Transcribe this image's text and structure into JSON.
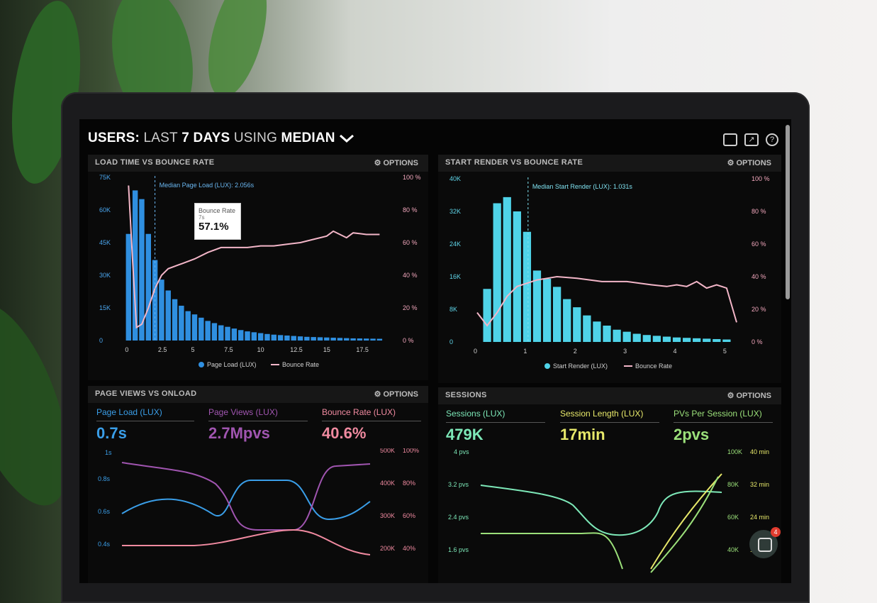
{
  "header": {
    "prefix": "USERS:",
    "last": "LAST",
    "days": "7 DAYS",
    "using": "USING",
    "metric": "MEDIAN",
    "chevron_icon": "chevron-down-icon",
    "icons": [
      "monitor-icon",
      "share-icon",
      "help-icon"
    ]
  },
  "options_label": "OPTIONS",
  "panels": {
    "load": {
      "title": "LOAD TIME VS BOUNCE RATE",
      "median_label": "Median Page Load (LUX): 2.056s",
      "tooltip": {
        "title": "Bounce Rate",
        "sub": "7s",
        "value": "57.1%"
      },
      "legend": [
        "Page Load (LUX)",
        "Bounce Rate"
      ]
    },
    "render": {
      "title": "START RENDER VS BOUNCE RATE",
      "median_label": "Median Start Render (LUX): 1.031s",
      "legend": [
        "Start Render (LUX)",
        "Bounce Rate"
      ]
    },
    "pageviews": {
      "title": "PAGE VIEWS VS ONLOAD",
      "metrics": [
        {
          "label": "Page Load (LUX)",
          "value": "0.7s",
          "color": "#3a9ee8"
        },
        {
          "label": "Page Views (LUX)",
          "value": "2.7Mpvs",
          "color": "#a055b0"
        },
        {
          "label": "Bounce Rate (LUX)",
          "value": "40.6%",
          "color": "#f08aa0"
        }
      ]
    },
    "sessions": {
      "title": "SESSIONS",
      "metrics": [
        {
          "label": "Sessions (LUX)",
          "value": "479K",
          "color": "#7de8b8"
        },
        {
          "label": "Session Length (LUX)",
          "value": "17min",
          "color": "#e7e86a"
        },
        {
          "label": "PVs Per Session (LUX)",
          "value": "2pvs",
          "color": "#9be07a"
        }
      ]
    }
  },
  "chat_badge": "4",
  "chart_data": [
    {
      "type": "bar",
      "title": "LOAD TIME VS BOUNCE RATE",
      "x_ticks": [
        "0",
        "2.5",
        "5",
        "7.5",
        "10",
        "12.5",
        "15",
        "17.5"
      ],
      "y_ticks": [
        "0",
        "15K",
        "30K",
        "45K",
        "60K",
        "75K"
      ],
      "y2_ticks": [
        "0 %",
        "20 %",
        "40 %",
        "60 %",
        "80 %",
        "100 %"
      ],
      "ylim": [
        0,
        75000
      ],
      "xlim": [
        -0.5,
        20
      ],
      "series": [
        {
          "name": "Page Load (LUX)",
          "type": "bar",
          "color": "#2f8fe0",
          "x": [
            0,
            0.5,
            1,
            1.5,
            2,
            2.5,
            3,
            3.5,
            4,
            4.5,
            5,
            5.5,
            6,
            6.5,
            7,
            7.5,
            8,
            8.5,
            9,
            9.5,
            10,
            10.5,
            11,
            11.5,
            12,
            12.5,
            13,
            13.5,
            14,
            14.5,
            15,
            15.5,
            16,
            16.5,
            17,
            17.5,
            18,
            18.5,
            19
          ],
          "values": [
            49000,
            69000,
            65000,
            49000,
            37000,
            28000,
            23000,
            19000,
            16000,
            13500,
            12000,
            10500,
            9000,
            8000,
            7000,
            6300,
            5500,
            4800,
            4200,
            3800,
            3400,
            3000,
            2700,
            2500,
            2300,
            2100,
            1900,
            1700,
            1600,
            1500,
            1400,
            1300,
            1200,
            1100,
            1000,
            950,
            900,
            850,
            800
          ]
        },
        {
          "name": "Bounce Rate",
          "type": "line",
          "axis": "y2",
          "color": "#f3b6c8",
          "x": [
            0,
            0.3,
            0.6,
            1,
            1.5,
            2,
            2.5,
            3,
            4,
            5,
            6,
            7,
            8,
            9,
            10,
            11,
            12,
            13,
            14,
            15,
            15.5,
            16,
            16.5,
            17,
            18,
            19
          ],
          "values": [
            95,
            50,
            8,
            10,
            20,
            32,
            40,
            44,
            47,
            50,
            54,
            57,
            57,
            57,
            58,
            58,
            59,
            60,
            62,
            64,
            67,
            65,
            63,
            66,
            65,
            65
          ]
        }
      ]
    },
    {
      "type": "bar",
      "title": "START RENDER VS BOUNCE RATE",
      "x_ticks": [
        "0",
        "1",
        "2",
        "3",
        "4",
        "5"
      ],
      "y_ticks": [
        "0",
        "8K",
        "16K",
        "24K",
        "32K",
        "40K"
      ],
      "y2_ticks": [
        "0 %",
        "20 %",
        "40 %",
        "60 %",
        "80 %",
        "100 %"
      ],
      "ylim": [
        0,
        40000
      ],
      "xlim": [
        -0.1,
        5.3
      ],
      "series": [
        {
          "name": "Start Render (LUX)",
          "type": "bar",
          "color": "#4fd3e8",
          "x": [
            0.2,
            0.4,
            0.6,
            0.8,
            1,
            1.2,
            1.4,
            1.6,
            1.8,
            2,
            2.2,
            2.4,
            2.6,
            2.8,
            3,
            3.2,
            3.4,
            3.6,
            3.8,
            4,
            4.2,
            4.4,
            4.6,
            4.8,
            5
          ],
          "values": [
            13000,
            34000,
            35500,
            32000,
            27000,
            17500,
            15500,
            13500,
            10500,
            8500,
            6500,
            5000,
            4000,
            3000,
            2500,
            2000,
            1700,
            1500,
            1300,
            1100,
            1000,
            900,
            800,
            700,
            600
          ]
        },
        {
          "name": "Bounce Rate",
          "type": "line",
          "axis": "y2",
          "color": "#f3b6c8",
          "x": [
            0,
            0.2,
            0.4,
            0.6,
            0.8,
            1,
            1.2,
            1.4,
            1.6,
            2,
            2.5,
            3,
            3.5,
            3.8,
            4,
            4.2,
            4.4,
            4.6,
            4.8,
            5,
            5.2
          ],
          "values": [
            18,
            10,
            18,
            28,
            34,
            36,
            38,
            39,
            40,
            39,
            37,
            37,
            35,
            34,
            35,
            34,
            37,
            33,
            35,
            33,
            12
          ]
        }
      ]
    }
  ]
}
